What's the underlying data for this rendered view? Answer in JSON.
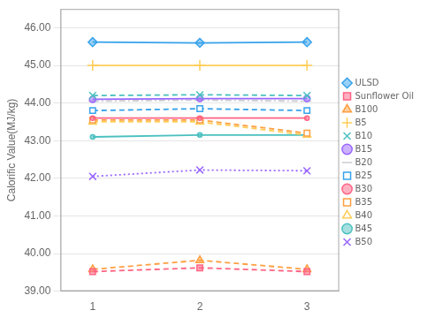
{
  "chart_data": {
    "type": "line",
    "ylabel": "Calorific Value(MJ/kg)",
    "x": [
      1,
      2,
      3
    ],
    "series": [
      {
        "name": "ULSD",
        "values": [
          45.62,
          45.6,
          45.62
        ],
        "marker": "diamond",
        "line_style": "solid"
      },
      {
        "name": "Sunflower Oil",
        "values": [
          39.52,
          39.62,
          39.52
        ],
        "marker": "square",
        "line_style": "dashed"
      },
      {
        "name": "B100",
        "values": [
          39.58,
          39.82,
          39.58
        ],
        "marker": "triangle",
        "line_style": "dashed"
      },
      {
        "name": "B5",
        "values": [
          45.0,
          45.0,
          45.0
        ],
        "marker": "plus",
        "line_style": "solid"
      },
      {
        "name": "B10",
        "values": [
          44.2,
          44.22,
          44.2
        ],
        "marker": "x",
        "line_style": "dashed"
      },
      {
        "name": "B15",
        "values": [
          44.1,
          44.12,
          44.12
        ],
        "marker": "circle",
        "line_style": "solid"
      },
      {
        "name": "B20",
        "values": [
          44.05,
          44.08,
          44.05
        ],
        "marker": "hline",
        "line_style": "dashdot"
      },
      {
        "name": "B25",
        "values": [
          43.8,
          43.85,
          43.8
        ],
        "marker": "open_square",
        "line_style": "dashed"
      },
      {
        "name": "B30",
        "values": [
          43.6,
          43.6,
          43.6
        ],
        "marker": "point",
        "line_style": "solid"
      },
      {
        "name": "B35",
        "values": [
          43.55,
          43.55,
          43.2
        ],
        "marker": "open_square",
        "line_style": "dashed"
      },
      {
        "name": "B40",
        "values": [
          43.5,
          43.5,
          43.15
        ],
        "marker": "open_triangle",
        "line_style": "dashed"
      },
      {
        "name": "B45",
        "values": [
          43.1,
          43.15,
          43.15
        ],
        "marker": "point",
        "line_style": "solid"
      },
      {
        "name": "B50",
        "values": [
          42.05,
          42.22,
          42.2
        ],
        "marker": "x",
        "line_style": "dotted"
      }
    ],
    "xlim": [
      0.7,
      3.3
    ],
    "xticks": [
      1,
      2,
      3
    ],
    "ylim": [
      39.0,
      46.5
    ],
    "yticks": [
      {
        "value": 39.0,
        "label": "39.00"
      },
      {
        "value": 40.0,
        "label": "40.00"
      },
      {
        "value": 41.0,
        "label": "41.00"
      },
      {
        "value": 42.0,
        "label": "42.00"
      },
      {
        "value": 43.0,
        "label": "43.00"
      },
      {
        "value": 44.0,
        "label": "44.00"
      },
      {
        "value": 45.0,
        "label": "45.00"
      },
      {
        "value": 46.0,
        "label": "46.00"
      }
    ],
    "grid": "y",
    "legend": "right"
  }
}
